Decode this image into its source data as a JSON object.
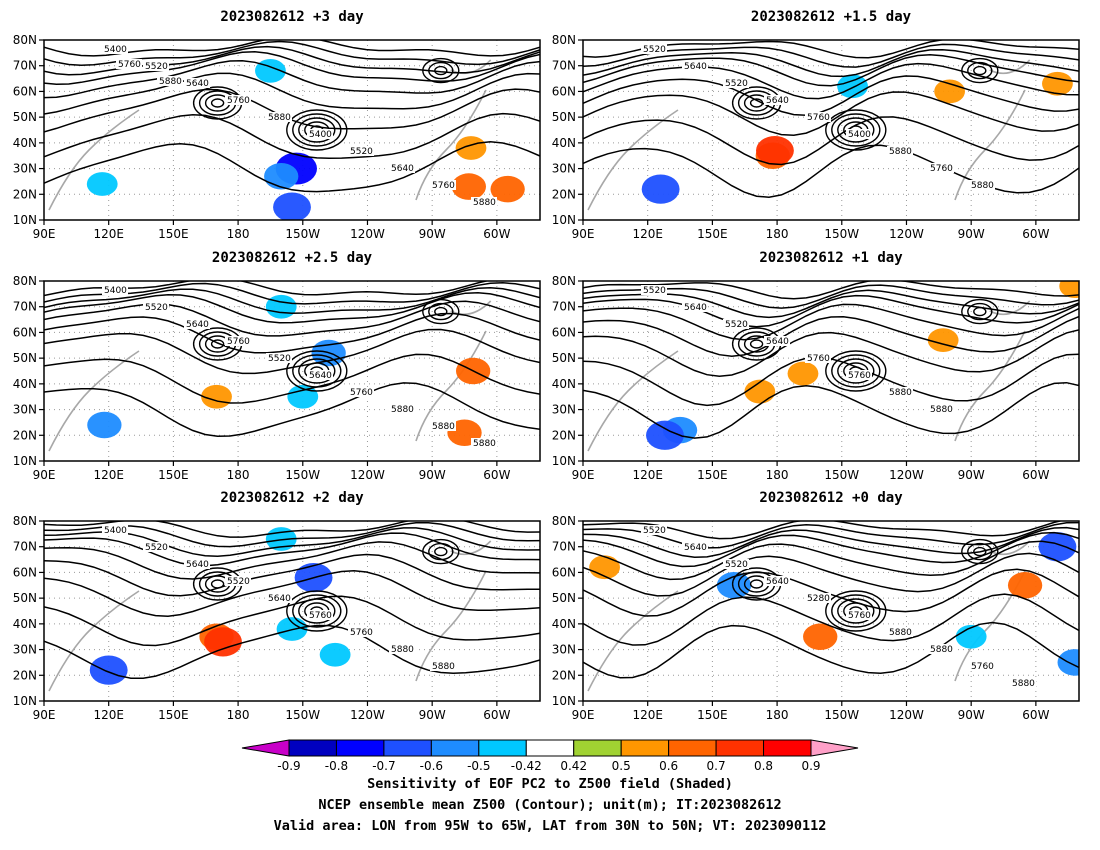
{
  "chart_data": {
    "type": "contour",
    "lon_ticks": [
      "90E",
      "120E",
      "150E",
      "180",
      "150W",
      "120W",
      "90W",
      "60W"
    ],
    "lat_ticks": [
      "10N",
      "20N",
      "30N",
      "40N",
      "50N",
      "60N",
      "70N",
      "80N"
    ],
    "domain": {
      "lon": [
        90,
        320
      ],
      "lat": [
        10,
        80
      ]
    },
    "panels": [
      {
        "title": "2023082612 +3 day",
        "contour_labels": [
          "5400",
          "5520",
          "5640",
          "5760",
          "5880",
          "5400",
          "5520",
          "5640",
          "5760",
          "5880",
          "5760",
          "5880"
        ],
        "shading": [
          {
            "lon": 207,
            "lat": 30,
            "value": -0.8
          },
          {
            "lon": 200,
            "lat": 27,
            "value": -0.6
          },
          {
            "lon": 205,
            "lat": 15,
            "value": -0.7
          },
          {
            "lon": 117,
            "lat": 24,
            "value": -0.5
          },
          {
            "lon": 195,
            "lat": 68,
            "value": -0.5
          },
          {
            "lon": 287,
            "lat": 23,
            "value": 0.6
          },
          {
            "lon": 288,
            "lat": 38,
            "value": 0.5
          },
          {
            "lon": 305,
            "lat": 22,
            "value": 0.6
          }
        ]
      },
      {
        "title": "2023082612 +1.5 day",
        "contour_labels": [
          "5520",
          "5640",
          "5520",
          "5640",
          "5760",
          "5400",
          "5880",
          "5760",
          "5880"
        ],
        "shading": [
          {
            "lon": 178,
            "lat": 35,
            "value": 0.6
          },
          {
            "lon": 179,
            "lat": 37,
            "value": 0.7
          },
          {
            "lon": 126,
            "lat": 22,
            "value": -0.7
          },
          {
            "lon": 215,
            "lat": 62,
            "value": -0.5
          },
          {
            "lon": 310,
            "lat": 63,
            "value": 0.5
          },
          {
            "lon": 260,
            "lat": 60,
            "value": 0.5
          }
        ]
      },
      {
        "title": "2023082612 +2.5 day",
        "contour_labels": [
          "5400",
          "5520",
          "5640",
          "5760",
          "5520",
          "5640",
          "5760",
          "5880",
          "5880",
          "5880"
        ],
        "shading": [
          {
            "lon": 118,
            "lat": 24,
            "value": -0.6
          },
          {
            "lon": 210,
            "lat": 35,
            "value": -0.5
          },
          {
            "lon": 222,
            "lat": 52,
            "value": -0.6
          },
          {
            "lon": 200,
            "lat": 70,
            "value": -0.5
          },
          {
            "lon": 170,
            "lat": 35,
            "value": 0.5
          },
          {
            "lon": 289,
            "lat": 45,
            "value": 0.6
          },
          {
            "lon": 285,
            "lat": 21,
            "value": 0.6
          }
        ]
      },
      {
        "title": "2023082612 +1 day",
        "contour_labels": [
          "5520",
          "5640",
          "5520",
          "5640",
          "5760",
          "5760",
          "5880",
          "5880"
        ],
        "shading": [
          {
            "lon": 135,
            "lat": 22,
            "value": -0.6
          },
          {
            "lon": 128,
            "lat": 20,
            "value": -0.7
          },
          {
            "lon": 172,
            "lat": 37,
            "value": 0.5
          },
          {
            "lon": 192,
            "lat": 44,
            "value": 0.5
          },
          {
            "lon": 257,
            "lat": 57,
            "value": 0.5
          },
          {
            "lon": 318,
            "lat": 78,
            "value": 0.5
          }
        ]
      },
      {
        "title": "2023082612 +2 day",
        "contour_labels": [
          "5400",
          "5520",
          "5640",
          "5520",
          "5640",
          "5760",
          "5760",
          "5880",
          "5880"
        ],
        "shading": [
          {
            "lon": 170,
            "lat": 35,
            "value": 0.6
          },
          {
            "lon": 173,
            "lat": 33,
            "value": 0.7
          },
          {
            "lon": 120,
            "lat": 22,
            "value": -0.7
          },
          {
            "lon": 200,
            "lat": 73,
            "value": -0.5
          },
          {
            "lon": 215,
            "lat": 58,
            "value": -0.7
          },
          {
            "lon": 225,
            "lat": 28,
            "value": -0.5
          },
          {
            "lon": 205,
            "lat": 38,
            "value": -0.5
          }
        ]
      },
      {
        "title": "2023082612 +0 day",
        "contour_labels": [
          "5520",
          "5640",
          "5520",
          "5640",
          "5280",
          "5760",
          "5880",
          "5880",
          "5760",
          "5880"
        ],
        "shading": [
          {
            "lon": 310,
            "lat": 70,
            "value": -0.7
          },
          {
            "lon": 318,
            "lat": 25,
            "value": -0.6
          },
          {
            "lon": 270,
            "lat": 35,
            "value": -0.5
          },
          {
            "lon": 160,
            "lat": 55,
            "value": -0.6
          },
          {
            "lon": 100,
            "lat": 62,
            "value": 0.5
          },
          {
            "lon": 295,
            "lat": 55,
            "value": 0.6
          },
          {
            "lon": 200,
            "lat": 35,
            "value": 0.6
          }
        ]
      }
    ],
    "colorbar": {
      "tick_labels": [
        "-0.9",
        "-0.8",
        "-0.7",
        "-0.6",
        "-0.5",
        "-0.42",
        "0.42",
        "0.5",
        "0.6",
        "0.7",
        "0.8",
        "0.9"
      ],
      "colors": [
        "#c800c8",
        "#0000c0",
        "#0000ff",
        "#1e50ff",
        "#1e8cff",
        "#00c8ff",
        "#ffffff",
        "#a0d232",
        "#ff9600",
        "#ff6400",
        "#ff3200",
        "#ff0000",
        "#ffa0c8"
      ]
    }
  },
  "captions": {
    "line1": "Sensitivity of EOF PC2 to Z500 field (Shaded)",
    "line2": "NCEP ensemble mean Z500 (Contour); unit(m); IT:2023082612",
    "line3": "Valid area: LON from 95W to 65W, LAT from 30N to 50N; VT: 2023090112"
  }
}
